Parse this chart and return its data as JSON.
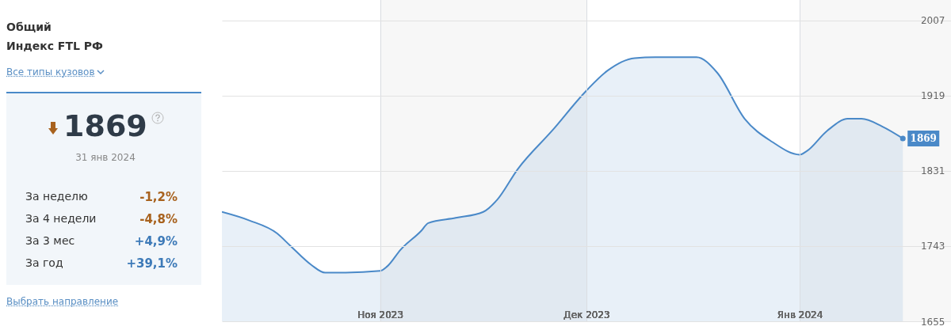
{
  "chart_data": {
    "type": "area",
    "title": "Общий",
    "subtitle": "Индекс FTL РФ",
    "x": [
      "2023-10-09",
      "2023-10-13",
      "2023-10-17",
      "2023-10-19",
      "2023-10-22",
      "2023-10-24",
      "2023-10-27",
      "2023-11-01",
      "2023-11-02",
      "2023-11-04",
      "2023-11-07",
      "2023-11-08",
      "2023-11-12",
      "2023-11-16",
      "2023-11-18",
      "2023-11-21",
      "2023-11-26",
      "2023-12-01",
      "2023-12-04",
      "2023-12-08",
      "2023-12-11",
      "2023-12-17",
      "2023-12-20",
      "2023-12-24",
      "2023-12-28",
      "2024-01-01",
      "2024-01-02",
      "2024-01-05",
      "2024-01-08",
      "2024-01-10",
      "2024-01-13",
      "2024-01-16"
    ],
    "series": [
      {
        "color": "#4a89c8",
        "values": [
          1783,
          1773,
          1758,
          1743,
          1721,
          1712,
          1712,
          1714,
          1719,
          1739,
          1761,
          1770,
          1776,
          1783,
          1797,
          1833,
          1878,
          1925,
          1948,
          1963,
          1964,
          1964,
          1946,
          1892,
          1865,
          1850,
          1854,
          1878,
          1892,
          1892,
          1883,
          1869
        ]
      }
    ],
    "xlim": [
      "2023-10-09",
      "2024-01-23"
    ],
    "xticks": [
      {
        "value": "2023-11-01",
        "label": "Ноя 2023"
      },
      {
        "value": "2023-12-01",
        "label": "Дек 2023"
      },
      {
        "value": "2024-01-01",
        "label": "Янв 2024"
      }
    ],
    "ylim": [
      1655,
      2031
    ],
    "yticks": [
      1655,
      1743,
      1831,
      1919,
      2007
    ],
    "grid": true,
    "bands": [
      {
        "axis": "x",
        "from": "2023-11-01",
        "to": "2023-12-01",
        "color": "#f7f7f7"
      },
      {
        "axis": "x",
        "from": "2024-01-01",
        "to": "2024-01-23",
        "color": "#f7f7f7"
      }
    ],
    "annotations": [
      "Все типы кузовов",
      "1869",
      "31 янв 2024",
      "За неделю",
      "-1,2%",
      "За 4 недели",
      "-4,8%",
      "За 3 мес",
      "+4,9%",
      "За год",
      "+39,1%",
      "Выбрать направление",
      {
        "text": "1869",
        "x": "2024-01-16",
        "y": 1869
      }
    ]
  }
}
